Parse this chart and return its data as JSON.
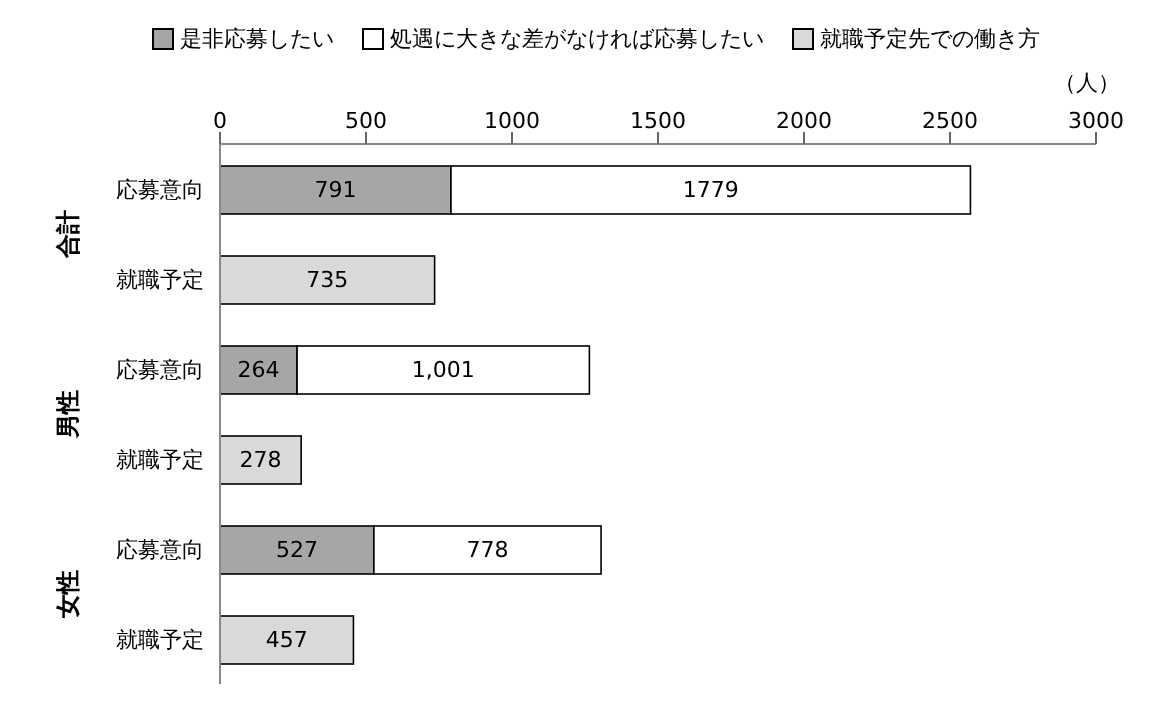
{
  "chart_data": {
    "type": "bar",
    "orientation": "horizontal",
    "stacked": true,
    "xlabel": "（人）",
    "categories": [
      "応募意向",
      "就職予定",
      "応募意向",
      "就職予定",
      "応募意向",
      "就職予定"
    ],
    "series": [
      {
        "name": "是非応募したい",
        "color": "#a6a6a6",
        "values": [
          791,
          null,
          264,
          null,
          527,
          null
        ],
        "value_labels": [
          "791",
          null,
          "264",
          null,
          "527",
          null
        ]
      },
      {
        "name": "処遇に大きな差がなければ応募したい",
        "color": "#ffffff",
        "values": [
          1779,
          null,
          1001,
          null,
          778,
          null
        ],
        "value_labels": [
          "1779",
          null,
          "1,001",
          null,
          "778",
          null
        ]
      },
      {
        "name": "就職予定先での働き方",
        "color": "#d9d9d9",
        "values": [
          null,
          735,
          null,
          278,
          null,
          457
        ],
        "value_labels": [
          null,
          "735",
          null,
          "278",
          null,
          "457"
        ]
      }
    ],
    "xlim": [
      0,
      3000
    ],
    "xticks": [
      0,
      500,
      1000,
      1500,
      2000,
      2500,
      3000
    ],
    "annotations": [
      "合計",
      "男性",
      "女性"
    ],
    "legend": "top"
  }
}
